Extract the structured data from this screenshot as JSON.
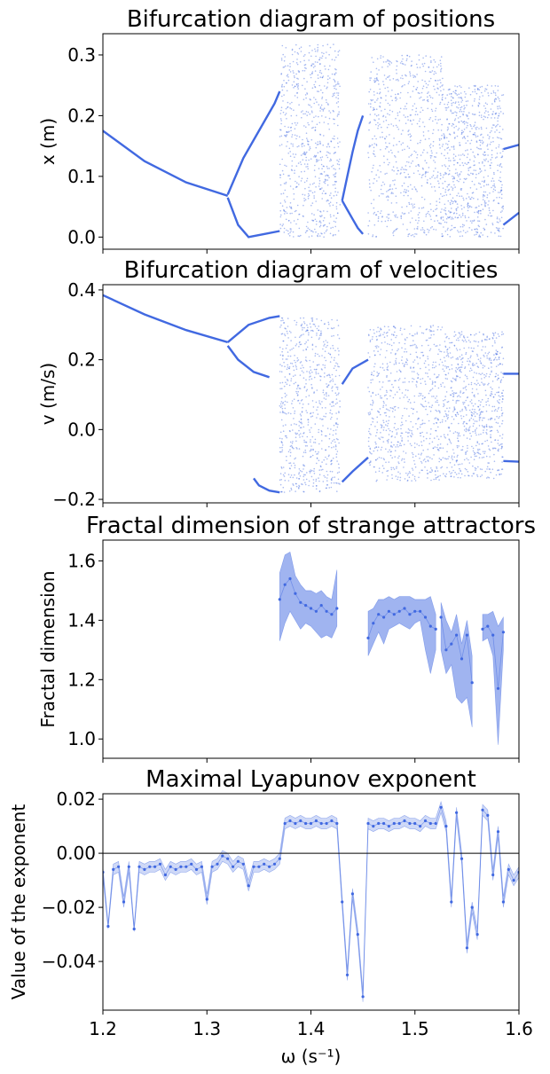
{
  "colors": {
    "primary": "#4169e1",
    "band": "#4169e1",
    "zero_line": "#000000"
  },
  "figure": {
    "xlabel": "ω (s⁻¹)",
    "xlim": [
      1.2,
      1.6
    ],
    "xticks": [
      1.2,
      1.3,
      1.4,
      1.5,
      1.6
    ],
    "xtick_labels": [
      "1.2",
      "1.3",
      "1.4",
      "1.5",
      "1.6"
    ]
  },
  "chart_data": [
    {
      "type": "scatter",
      "title": "Bifurcation diagram of positions",
      "ylabel": "x (m)",
      "xlim": [
        1.2,
        1.6
      ],
      "ylim": [
        -0.02,
        0.335
      ],
      "yticks": [
        0.0,
        0.1,
        0.2,
        0.3
      ],
      "ytick_labels": [
        "0.0",
        "0.1",
        "0.2",
        "0.3"
      ],
      "grid": false,
      "branches": [
        {
          "x": [
            1.2,
            1.24,
            1.28,
            1.32
          ],
          "y": [
            0.175,
            0.125,
            0.09,
            0.068
          ]
        },
        {
          "x": [
            1.32,
            1.335,
            1.35,
            1.365,
            1.37
          ],
          "y": [
            0.07,
            0.13,
            0.175,
            0.22,
            0.24
          ]
        },
        {
          "x": [
            1.32,
            1.33,
            1.34,
            1.355,
            1.37
          ],
          "y": [
            0.065,
            0.02,
            0.0,
            0.005,
            0.01
          ]
        },
        {
          "x": [
            1.43,
            1.435,
            1.44,
            1.445,
            1.45
          ],
          "y": [
            0.06,
            0.1,
            0.14,
            0.175,
            0.2
          ]
        },
        {
          "x": [
            1.43,
            1.435,
            1.44,
            1.445,
            1.45
          ],
          "y": [
            0.06,
            0.045,
            0.03,
            0.015,
            0.005
          ]
        },
        {
          "x": [
            1.585,
            1.6
          ],
          "y": [
            0.145,
            0.152
          ]
        },
        {
          "x": [
            1.585,
            1.6
          ],
          "y": [
            0.02,
            0.04
          ]
        }
      ],
      "chaotic_bands": [
        {
          "x_range": [
            1.37,
            1.428
          ],
          "y_range": [
            0.0,
            0.318
          ]
        },
        {
          "x_range": [
            1.455,
            1.528
          ],
          "y_range": [
            0.0,
            0.3
          ]
        },
        {
          "x_range": [
            1.528,
            1.585
          ],
          "y_range": [
            0.0,
            0.25
          ]
        }
      ]
    },
    {
      "type": "scatter",
      "title": "Bifurcation diagram of velocities",
      "ylabel": "v (m/s)",
      "xlim": [
        1.2,
        1.6
      ],
      "ylim": [
        -0.21,
        0.415
      ],
      "yticks": [
        -0.2,
        0.0,
        0.2,
        0.4
      ],
      "ytick_labels": [
        "−0.2",
        "0.0",
        "0.2",
        "0.4"
      ],
      "grid": false,
      "branches": [
        {
          "x": [
            1.2,
            1.24,
            1.28,
            1.32
          ],
          "y": [
            0.385,
            0.33,
            0.285,
            0.25
          ]
        },
        {
          "x": [
            1.32,
            1.34,
            1.36,
            1.37
          ],
          "y": [
            0.25,
            0.3,
            0.32,
            0.325
          ]
        },
        {
          "x": [
            1.32,
            1.33,
            1.345,
            1.36
          ],
          "y": [
            0.24,
            0.2,
            0.165,
            0.15
          ]
        },
        {
          "x": [
            1.345,
            1.35,
            1.36,
            1.37
          ],
          "y": [
            -0.14,
            -0.16,
            -0.175,
            -0.18
          ]
        },
        {
          "x": [
            1.43,
            1.44,
            1.455
          ],
          "y": [
            0.13,
            0.175,
            0.2
          ]
        },
        {
          "x": [
            1.43,
            1.44,
            1.455
          ],
          "y": [
            -0.15,
            -0.12,
            -0.08
          ]
        },
        {
          "x": [
            1.585,
            1.6
          ],
          "y": [
            0.16,
            0.16
          ]
        },
        {
          "x": [
            1.585,
            1.6
          ],
          "y": [
            -0.09,
            -0.092
          ]
        }
      ],
      "chaotic_bands": [
        {
          "x_range": [
            1.37,
            1.428
          ],
          "y_range": [
            -0.18,
            0.32
          ]
        },
        {
          "x_range": [
            1.455,
            1.528
          ],
          "y_range": [
            -0.15,
            0.3
          ]
        },
        {
          "x_range": [
            1.528,
            1.585
          ],
          "y_range": [
            -0.14,
            0.28
          ]
        }
      ]
    },
    {
      "type": "line",
      "title": "Fractal dimension of strange attractors",
      "ylabel": "Fractal dimension",
      "xlim": [
        1.2,
        1.6
      ],
      "ylim": [
        0.935,
        1.67
      ],
      "yticks": [
        1.0,
        1.2,
        1.4,
        1.6
      ],
      "ytick_labels": [
        "1.0",
        "1.2",
        "1.4",
        "1.6"
      ],
      "grid": false,
      "series": [
        {
          "x": [
            1.37,
            1.375,
            1.38,
            1.385,
            1.39,
            1.395,
            1.4,
            1.405,
            1.41,
            1.415,
            1.42,
            1.425
          ],
          "y": [
            1.47,
            1.52,
            1.54,
            1.49,
            1.46,
            1.45,
            1.44,
            1.43,
            1.45,
            1.43,
            1.42,
            1.44
          ],
          "lower": [
            1.33,
            1.39,
            1.43,
            1.4,
            1.37,
            1.39,
            1.38,
            1.36,
            1.34,
            1.35,
            1.34,
            1.38
          ],
          "upper": [
            1.56,
            1.62,
            1.63,
            1.55,
            1.52,
            1.5,
            1.5,
            1.49,
            1.5,
            1.48,
            1.47,
            1.57
          ]
        },
        {
          "x": [
            1.455,
            1.46,
            1.465,
            1.47,
            1.475,
            1.48,
            1.485,
            1.49,
            1.495,
            1.5,
            1.505,
            1.51,
            1.515,
            1.52
          ],
          "y": [
            1.34,
            1.39,
            1.42,
            1.41,
            1.43,
            1.42,
            1.43,
            1.44,
            1.42,
            1.43,
            1.43,
            1.41,
            1.38,
            1.37
          ],
          "lower": [
            1.28,
            1.32,
            1.36,
            1.32,
            1.37,
            1.38,
            1.39,
            1.38,
            1.37,
            1.39,
            1.4,
            1.3,
            1.22,
            1.3
          ],
          "upper": [
            1.43,
            1.44,
            1.47,
            1.47,
            1.48,
            1.47,
            1.48,
            1.48,
            1.48,
            1.47,
            1.47,
            1.47,
            1.48,
            1.42
          ]
        },
        {
          "x": [
            1.525,
            1.53,
            1.535,
            1.54,
            1.545,
            1.55,
            1.555
          ],
          "y": [
            1.41,
            1.3,
            1.32,
            1.35,
            1.27,
            1.35,
            1.19
          ],
          "lower": [
            1.3,
            1.22,
            1.25,
            1.14,
            1.12,
            1.14,
            1.04
          ],
          "upper": [
            1.46,
            1.4,
            1.36,
            1.42,
            1.32,
            1.4,
            1.28
          ]
        },
        {
          "x": [
            1.565,
            1.57,
            1.575,
            1.58,
            1.585
          ],
          "y": [
            1.37,
            1.38,
            1.35,
            1.17,
            1.36
          ],
          "lower": [
            1.33,
            1.34,
            1.28,
            0.98,
            1.3
          ],
          "upper": [
            1.42,
            1.42,
            1.43,
            1.38,
            1.41
          ]
        }
      ]
    },
    {
      "type": "line",
      "title": "Maximal Lyapunov exponent",
      "ylabel": "Value of the exponent",
      "xlim": [
        1.2,
        1.6
      ],
      "ylim": [
        -0.058,
        0.022
      ],
      "yticks": [
        0.02,
        0.0,
        -0.02,
        -0.04
      ],
      "ytick_labels": [
        "0.02",
        "0.00",
        "−0.02",
        "−0.04"
      ],
      "hline": 0.0,
      "grid": false,
      "series": [
        {
          "x": [
            1.2,
            1.205,
            1.21,
            1.215,
            1.22,
            1.225,
            1.23,
            1.235,
            1.24,
            1.245,
            1.25,
            1.255,
            1.26,
            1.265,
            1.27,
            1.275,
            1.28,
            1.285,
            1.29,
            1.295,
            1.3,
            1.305,
            1.31,
            1.315,
            1.32,
            1.325,
            1.33,
            1.335,
            1.34,
            1.345,
            1.35,
            1.355,
            1.36,
            1.365,
            1.37,
            1.375,
            1.38,
            1.385,
            1.39,
            1.395,
            1.4,
            1.405,
            1.41,
            1.415,
            1.42,
            1.425,
            1.43,
            1.435,
            1.44,
            1.445,
            1.45,
            1.455,
            1.46,
            1.465,
            1.47,
            1.475,
            1.48,
            1.485,
            1.49,
            1.495,
            1.5,
            1.505,
            1.51,
            1.515,
            1.52,
            1.525,
            1.53,
            1.535,
            1.54,
            1.545,
            1.55,
            1.555,
            1.56,
            1.565,
            1.57,
            1.575,
            1.58,
            1.585,
            1.59,
            1.595,
            1.6
          ],
          "y": [
            -0.007,
            -0.027,
            -0.006,
            -0.005,
            -0.018,
            -0.005,
            -0.028,
            -0.005,
            -0.006,
            -0.005,
            -0.005,
            -0.004,
            -0.008,
            -0.005,
            -0.006,
            -0.005,
            -0.005,
            -0.004,
            -0.006,
            -0.005,
            -0.017,
            -0.005,
            -0.004,
            -0.001,
            -0.002,
            -0.005,
            -0.003,
            -0.004,
            -0.012,
            -0.005,
            -0.005,
            -0.004,
            -0.005,
            -0.004,
            -0.002,
            0.011,
            0.012,
            0.011,
            0.012,
            0.011,
            0.011,
            0.012,
            0.011,
            0.011,
            0.012,
            0.011,
            -0.018,
            -0.045,
            -0.015,
            -0.03,
            -0.053,
            0.011,
            0.01,
            0.011,
            0.011,
            0.01,
            0.011,
            0.011,
            0.012,
            0.011,
            0.011,
            0.01,
            0.012,
            0.011,
            0.011,
            0.017,
            0.01,
            -0.018,
            0.015,
            -0.002,
            -0.035,
            -0.02,
            -0.03,
            0.016,
            0.014,
            -0.008,
            0.008,
            -0.018,
            -0.006,
            -0.01,
            -0.007
          ],
          "lower": [
            -0.009,
            -0.028,
            -0.008,
            -0.007,
            -0.02,
            -0.007,
            -0.029,
            -0.007,
            -0.008,
            -0.007,
            -0.007,
            -0.006,
            -0.01,
            -0.007,
            -0.008,
            -0.007,
            -0.007,
            -0.006,
            -0.008,
            -0.007,
            -0.019,
            -0.007,
            -0.006,
            -0.003,
            -0.004,
            -0.007,
            -0.005,
            -0.006,
            -0.014,
            -0.007,
            -0.007,
            -0.006,
            -0.007,
            -0.006,
            -0.004,
            0.009,
            0.01,
            0.009,
            0.01,
            0.009,
            0.009,
            0.01,
            0.009,
            0.009,
            0.01,
            0.009,
            -0.02,
            -0.047,
            -0.017,
            -0.032,
            -0.055,
            0.009,
            0.008,
            0.009,
            0.009,
            0.008,
            0.009,
            0.009,
            0.01,
            0.009,
            0.009,
            0.008,
            0.01,
            0.009,
            0.009,
            0.015,
            0.008,
            -0.02,
            0.013,
            -0.004,
            -0.037,
            -0.022,
            -0.032,
            0.014,
            0.012,
            -0.01,
            0.006,
            -0.02,
            -0.008,
            -0.012,
            -0.009
          ],
          "upper": [
            -0.005,
            -0.026,
            -0.004,
            -0.003,
            -0.016,
            -0.003,
            -0.027,
            -0.003,
            -0.004,
            -0.003,
            -0.003,
            -0.002,
            -0.006,
            -0.003,
            -0.004,
            -0.003,
            -0.003,
            -0.002,
            -0.004,
            -0.003,
            -0.015,
            -0.003,
            -0.002,
            0.001,
            0.0,
            -0.003,
            -0.001,
            -0.002,
            -0.01,
            -0.003,
            -0.003,
            -0.002,
            -0.003,
            -0.002,
            0.0,
            0.013,
            0.014,
            0.013,
            0.014,
            0.013,
            0.013,
            0.014,
            0.013,
            0.013,
            0.014,
            0.013,
            -0.016,
            -0.043,
            -0.013,
            -0.028,
            -0.051,
            0.013,
            0.012,
            0.013,
            0.013,
            0.012,
            0.013,
            0.013,
            0.014,
            0.013,
            0.013,
            0.012,
            0.014,
            0.013,
            0.013,
            0.019,
            0.012,
            -0.016,
            0.017,
            0.0,
            -0.033,
            -0.018,
            -0.028,
            0.018,
            0.016,
            -0.006,
            0.01,
            -0.016,
            -0.004,
            -0.008,
            -0.005
          ]
        }
      ]
    }
  ]
}
